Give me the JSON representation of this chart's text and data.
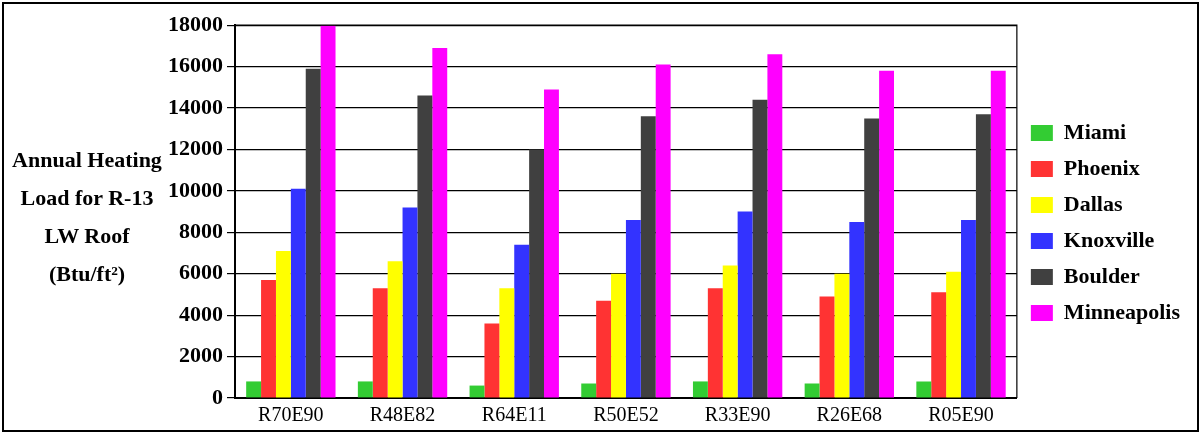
{
  "chart_data": {
    "type": "bar",
    "ylabel": "Annual Heating Load for R-13 LW Roof (Btu/ft²)",
    "categories": [
      "R70E90",
      "R48E82",
      "R64E11",
      "R50E52",
      "R33E90",
      "R26E68",
      "R05E90"
    ],
    "series": [
      {
        "name": "Miami",
        "color": "#33cc33",
        "values": [
          800,
          800,
          600,
          700,
          800,
          700,
          800
        ]
      },
      {
        "name": "Phoenix",
        "color": "#ff3333",
        "values": [
          5700,
          5300,
          3600,
          4700,
          5300,
          4900,
          5100
        ]
      },
      {
        "name": "Dallas",
        "color": "#ffff00",
        "values": [
          7100,
          6600,
          5300,
          6000,
          6400,
          6000,
          6100
        ]
      },
      {
        "name": "Knoxville",
        "color": "#3333ff",
        "values": [
          10100,
          9200,
          7400,
          8600,
          9000,
          8500,
          8600
        ]
      },
      {
        "name": "Boulder",
        "color": "#404040",
        "values": [
          15900,
          14600,
          12000,
          13600,
          14400,
          13500,
          13700
        ]
      },
      {
        "name": "Minneapolis",
        "color": "#ff00ff",
        "values": [
          18000,
          16900,
          14900,
          16100,
          16600,
          15800,
          15800
        ]
      }
    ],
    "ylim": [
      0,
      18000
    ],
    "yticks": [
      0,
      2000,
      4000,
      6000,
      8000,
      10000,
      12000,
      14000,
      16000,
      18000
    ],
    "grid": "y",
    "legend": "right"
  }
}
